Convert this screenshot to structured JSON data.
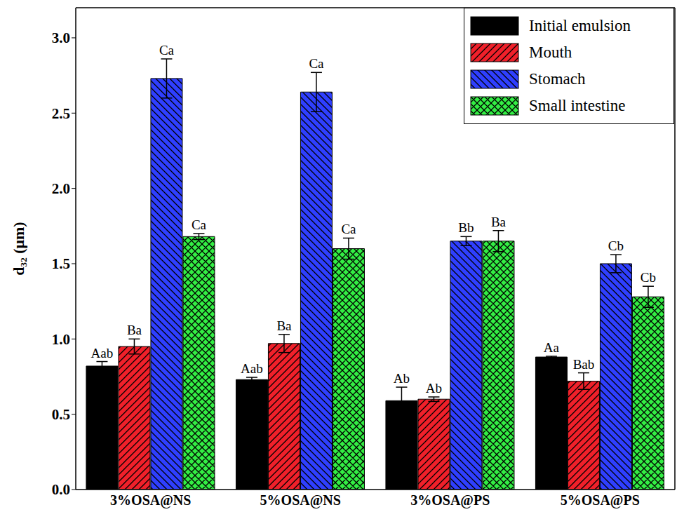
{
  "chart_data": {
    "type": "bar",
    "categories": [
      "3%OSA@NS",
      "5%OSA@NS",
      "3%OSA@PS",
      "5%OSA@PS"
    ],
    "y_label": "d₃₂ (μm)",
    "ylim": [
      0,
      3.2
    ],
    "yticks": [
      {
        "value": 0,
        "label": "0.0"
      },
      0.5,
      {
        "value": 1,
        "label": "1.0"
      },
      1.5,
      {
        "value": 2,
        "label": "2.0"
      },
      2.5,
      {
        "value": 3,
        "label": "3.0"
      }
    ],
    "legend": "upper right",
    "series": [
      {
        "name": "Initial emulsion",
        "color": "#000000",
        "values": [
          0.82,
          0.73,
          0.59,
          0.88
        ],
        "errors": [
          0.03,
          0.015,
          0.09,
          0.005
        ],
        "letters": [
          "Aab",
          "Aab",
          "Ab",
          "Aa"
        ]
      },
      {
        "name": "Mouth",
        "color": "#f0202a",
        "values": [
          0.95,
          0.97,
          0.6,
          0.72
        ],
        "errors": [
          0.05,
          0.06,
          0.015,
          0.055
        ],
        "letters": [
          "Ba",
          "Ba",
          "Ab",
          "Bab"
        ]
      },
      {
        "name": "Stomach",
        "color": "#2f3fff",
        "values": [
          2.73,
          2.64,
          1.65,
          1.5
        ],
        "errors": [
          0.13,
          0.13,
          0.03,
          0.06
        ],
        "letters": [
          "Ca",
          "Ca",
          "Bb",
          "Cb"
        ]
      },
      {
        "name": "Small intestine",
        "color": "#33ee44",
        "values": [
          1.68,
          1.6,
          1.65,
          1.28
        ],
        "errors": [
          0.02,
          0.07,
          0.07,
          0.07
        ],
        "letters": [
          "Ca",
          "Ca",
          "Ba",
          "Cb"
        ]
      }
    ]
  }
}
